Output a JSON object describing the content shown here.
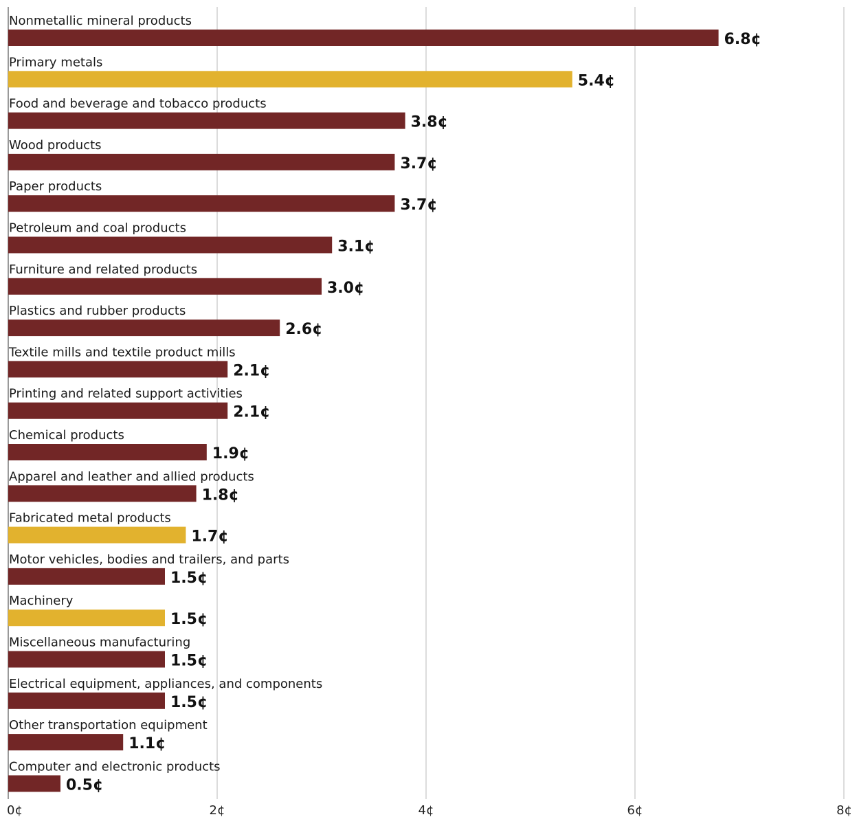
{
  "chart_data": {
    "type": "bar",
    "orientation": "horizontal",
    "categories": [
      "Nonmetallic mineral products",
      "Primary metals",
      "Food and beverage and tobacco products",
      "Wood products",
      "Paper products",
      "Petroleum and coal products",
      "Furniture and related products",
      "Plastics and rubber products",
      "Textile mills and textile product mills",
      "Printing and related support activities",
      "Chemical products",
      "Apparel and leather and allied products",
      "Fabricated metal products",
      "Motor vehicles, bodies and trailers, and parts",
      "Machinery",
      "Miscellaneous manufacturing",
      "Electrical equipment, appliances, and components",
      "Other transportation equipment",
      "Computer and electronic products"
    ],
    "values": [
      6.8,
      5.4,
      3.8,
      3.7,
      3.7,
      3.1,
      3.0,
      2.6,
      2.1,
      2.1,
      1.9,
      1.8,
      1.7,
      1.5,
      1.5,
      1.5,
      1.5,
      1.1,
      0.5
    ],
    "value_labels": [
      "6.8¢",
      "5.4¢",
      "3.8¢",
      "3.7¢",
      "3.7¢",
      "3.1¢",
      "3.0¢",
      "2.6¢",
      "2.1¢",
      "2.1¢",
      "1.9¢",
      "1.8¢",
      "1.7¢",
      "1.5¢",
      "1.5¢",
      "1.5¢",
      "1.5¢",
      "1.1¢",
      "0.5¢"
    ],
    "highlighted": [
      false,
      true,
      false,
      false,
      false,
      false,
      false,
      false,
      false,
      false,
      false,
      false,
      true,
      false,
      true,
      false,
      false,
      false,
      false
    ],
    "xlim": [
      0,
      8
    ],
    "ticks": [
      0,
      2,
      4,
      6,
      8
    ],
    "tick_labels": [
      "0¢",
      "2¢",
      "4¢",
      "6¢",
      "8¢"
    ],
    "grid": true,
    "title": "",
    "xlabel": "",
    "ylabel": "",
    "colors": {
      "default": "#722626",
      "highlight": "#e2b22e",
      "grid": "#b8b8b8"
    }
  }
}
